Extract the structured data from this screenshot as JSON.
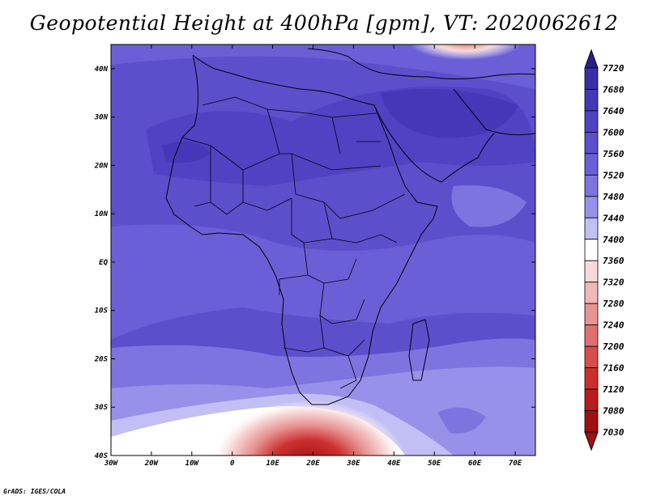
{
  "title": "Geopotential Height at 400hPa [gpm], VT: 2020062612",
  "credit": "GrADS: IGES/COLA",
  "map": {
    "lon_range": [
      -30,
      75
    ],
    "lat_range": [
      -40,
      45
    ],
    "lon_ticks": [
      {
        "value": -30,
        "label": "30W"
      },
      {
        "value": -20,
        "label": "20W"
      },
      {
        "value": -10,
        "label": "10W"
      },
      {
        "value": 0,
        "label": "0"
      },
      {
        "value": 10,
        "label": "10E"
      },
      {
        "value": 20,
        "label": "20E"
      },
      {
        "value": 30,
        "label": "30E"
      },
      {
        "value": 40,
        "label": "40E"
      },
      {
        "value": 50,
        "label": "50E"
      },
      {
        "value": 60,
        "label": "60E"
      },
      {
        "value": 70,
        "label": "70E"
      }
    ],
    "lat_ticks": [
      {
        "value": 40,
        "label": "40N"
      },
      {
        "value": 30,
        "label": "30N"
      },
      {
        "value": 20,
        "label": "20N"
      },
      {
        "value": 10,
        "label": "10N"
      },
      {
        "value": 0,
        "label": "EQ"
      },
      {
        "value": -10,
        "label": "10S"
      },
      {
        "value": -20,
        "label": "20S"
      },
      {
        "value": -30,
        "label": "30S"
      },
      {
        "value": -40,
        "label": "40S"
      }
    ]
  },
  "colorbar": {
    "levels": [
      "7720",
      "7680",
      "7640",
      "7600",
      "7560",
      "7520",
      "7480",
      "7440",
      "7400",
      "7360",
      "7320",
      "7280",
      "7240",
      "7200",
      "7160",
      "7120",
      "7080",
      "7030"
    ],
    "colors": [
      "#2a1f8e",
      "#3a2ea6",
      "#4636b8",
      "#5142c4",
      "#5c4fcc",
      "#6a5fd6",
      "#7d74e0",
      "#9891ea",
      "#c2bff5",
      "#ffffff",
      "#f8dada",
      "#f0b8b8",
      "#e89494",
      "#e07070",
      "#d84c4c",
      "#cc2e2e",
      "#b81d1d",
      "#a01010",
      "#a01010"
    ]
  }
}
